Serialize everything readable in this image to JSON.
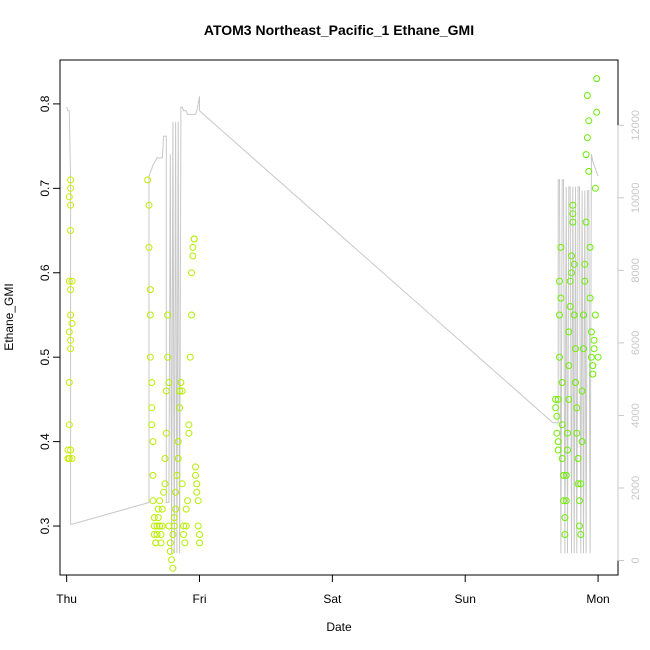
{
  "chart_data": {
    "type": "scatter",
    "title": "ATOM3 Northeast_Pacific_1 Ethane_GMI",
    "xlabel": "Date",
    "ylabel": "Ethane_GMI",
    "x_ticks": [
      "Thu",
      "Fri",
      "Sat",
      "Sun",
      "Mon"
    ],
    "x_tick_values": [
      0,
      1,
      2,
      3,
      4
    ],
    "xlim": [
      -0.05,
      4.15
    ],
    "ylim": [
      0.242,
      0.852
    ],
    "y_ticks": [
      0.3,
      0.4,
      0.5,
      0.6,
      0.7,
      0.8
    ],
    "y2_ticks": [
      0,
      2000,
      4000,
      6000,
      8000,
      10000,
      12000
    ],
    "y2lim": [
      -400,
      13800
    ],
    "grid": false,
    "series": [
      {
        "kind": "points",
        "color_start": "#ccee00",
        "color_end": "#66ee00",
        "x": [
          0.01,
          0.01,
          0.02,
          0.02,
          0.03,
          0.03,
          0.02,
          0.03,
          0.03,
          0.02,
          0.03,
          0.03,
          0.02,
          0.03,
          0.03,
          0.04,
          0.04,
          0.04,
          0.03,
          0.02,
          0.61,
          0.62,
          0.62,
          0.63,
          0.63,
          0.63,
          0.64,
          0.64,
          0.64,
          0.65,
          0.65,
          0.65,
          0.66,
          0.66,
          0.66,
          0.67,
          0.67,
          0.68,
          0.68,
          0.69,
          0.69,
          0.7,
          0.7,
          0.71,
          0.71,
          0.72,
          0.72,
          0.73,
          0.74,
          0.74,
          0.75,
          0.75,
          0.76,
          0.76,
          0.77,
          0.77,
          0.78,
          0.78,
          0.79,
          0.8,
          0.8,
          0.81,
          0.81,
          0.82,
          0.82,
          0.83,
          0.84,
          0.84,
          0.85,
          0.85,
          0.86,
          0.87,
          0.87,
          0.88,
          0.88,
          0.89,
          0.9,
          0.9,
          0.91,
          0.92,
          0.92,
          0.93,
          0.94,
          0.94,
          0.95,
          0.95,
          0.96,
          0.96,
          0.97,
          0.97,
          0.98,
          0.98,
          0.99,
          0.99,
          1.0,
          1.0,
          3.68,
          3.68,
          3.69,
          3.69,
          3.7,
          3.7,
          3.7,
          3.71,
          3.71,
          3.71,
          3.72,
          3.72,
          3.73,
          3.73,
          3.73,
          3.74,
          3.74,
          3.75,
          3.75,
          3.76,
          3.76,
          3.77,
          3.77,
          3.78,
          3.78,
          3.78,
          3.79,
          3.79,
          3.8,
          3.8,
          3.81,
          3.81,
          3.81,
          3.82,
          3.82,
          3.83,
          3.83,
          3.84,
          3.84,
          3.85,
          3.85,
          3.86,
          3.86,
          3.87,
          3.87,
          3.88,
          3.88,
          3.89,
          3.89,
          3.9,
          3.9,
          3.91,
          3.91,
          3.92,
          3.92,
          3.93,
          3.93,
          3.94,
          3.94,
          3.95,
          3.95,
          3.96,
          3.96,
          3.97,
          3.97,
          3.98,
          3.98,
          3.99,
          3.99,
          4.0
        ],
        "y": [
          0.38,
          0.39,
          0.42,
          0.47,
          0.51,
          0.52,
          0.53,
          0.55,
          0.58,
          0.59,
          0.65,
          0.68,
          0.69,
          0.7,
          0.71,
          0.59,
          0.54,
          0.38,
          0.39,
          0.38,
          0.71,
          0.68,
          0.63,
          0.58,
          0.55,
          0.5,
          0.47,
          0.44,
          0.42,
          0.4,
          0.36,
          0.33,
          0.31,
          0.3,
          0.29,
          0.28,
          0.28,
          0.29,
          0.3,
          0.31,
          0.32,
          0.33,
          0.3,
          0.29,
          0.28,
          0.3,
          0.32,
          0.34,
          0.35,
          0.38,
          0.41,
          0.46,
          0.5,
          0.55,
          0.47,
          0.3,
          0.28,
          0.27,
          0.26,
          0.25,
          0.29,
          0.3,
          0.31,
          0.32,
          0.34,
          0.36,
          0.38,
          0.4,
          0.44,
          0.46,
          0.47,
          0.46,
          0.35,
          0.3,
          0.29,
          0.28,
          0.3,
          0.32,
          0.33,
          0.41,
          0.42,
          0.5,
          0.55,
          0.6,
          0.62,
          0.63,
          0.64,
          0.64,
          0.37,
          0.36,
          0.35,
          0.34,
          0.33,
          0.3,
          0.29,
          0.28,
          0.44,
          0.45,
          0.43,
          0.41,
          0.4,
          0.39,
          0.45,
          0.5,
          0.55,
          0.59,
          0.63,
          0.57,
          0.47,
          0.42,
          0.38,
          0.36,
          0.33,
          0.31,
          0.29,
          0.33,
          0.36,
          0.39,
          0.41,
          0.45,
          0.49,
          0.53,
          0.56,
          0.59,
          0.6,
          0.62,
          0.68,
          0.67,
          0.66,
          0.61,
          0.55,
          0.51,
          0.47,
          0.44,
          0.41,
          0.38,
          0.35,
          0.33,
          0.3,
          0.29,
          0.35,
          0.4,
          0.46,
          0.51,
          0.55,
          0.59,
          0.61,
          0.66,
          0.74,
          0.76,
          0.81,
          0.78,
          0.72,
          0.63,
          0.57,
          0.53,
          0.5,
          0.48,
          0.49,
          0.51,
          0.52,
          0.55,
          0.7,
          0.79,
          0.83,
          0.5
        ]
      },
      {
        "kind": "line",
        "axis": "right",
        "color": "#c8c8c8",
        "x": [
          0.0,
          0.01,
          0.02,
          0.03,
          0.03,
          0.04,
          0.04,
          0.62,
          0.62,
          0.63,
          0.64,
          0.65,
          0.68,
          0.7,
          0.72,
          0.73,
          0.74,
          0.75,
          0.75,
          0.77,
          0.78,
          0.79,
          0.8,
          0.81,
          0.82,
          0.83,
          0.84,
          0.85,
          0.86,
          0.87,
          0.88,
          0.89,
          0.9,
          0.91,
          0.92,
          0.93,
          0.94,
          0.95,
          0.96,
          0.97,
          0.98,
          0.99,
          1.0,
          1.0,
          3.66,
          3.67,
          3.68,
          3.69,
          3.7,
          3.7,
          3.71,
          3.72,
          3.73,
          3.74,
          3.75,
          3.76,
          3.77,
          3.78,
          3.79,
          3.8,
          3.81,
          3.82,
          3.83,
          3.84,
          3.85,
          3.86,
          3.87,
          3.88,
          3.89,
          3.9,
          3.91,
          3.92,
          3.93,
          3.94,
          3.95,
          3.96,
          3.97,
          3.98,
          3.99,
          4.0,
          4.0
        ],
        "y": [
          12500,
          12400,
          12400,
          10500,
          1000,
          1000,
          1000,
          1600,
          10600,
          10700,
          10800,
          10900,
          11100,
          11100,
          11100,
          11700,
          11700,
          11700,
          1600,
          1600,
          11200,
          200,
          12100,
          200,
          12100,
          200,
          12100,
          200,
          12500,
          12500,
          12400,
          12400,
          12400,
          12300,
          12300,
          12300,
          12300,
          12300,
          12300,
          12300,
          12400,
          12600,
          12800,
          12400,
          3800,
          3800,
          3800,
          3800,
          3800,
          10500,
          10500,
          200,
          10500,
          10500,
          200,
          10300,
          200,
          10300,
          10300,
          200,
          10300,
          200,
          10300,
          200,
          10300,
          10300,
          200,
          10200,
          200,
          10200,
          200,
          10200,
          10200,
          200,
          11200,
          11000,
          10900,
          10800,
          10700,
          10600,
          10600
        ]
      }
    ]
  }
}
